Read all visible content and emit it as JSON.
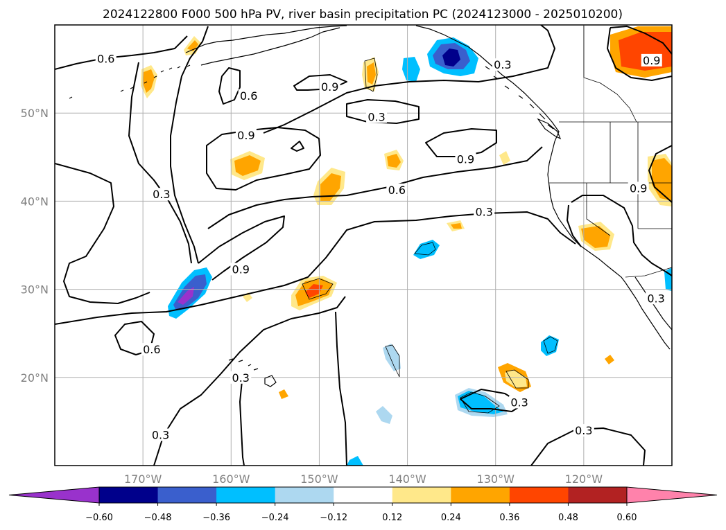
{
  "title": "2024122800 F000 500 hPa PV, river basin precipitation PC (2024123000 - 2025010200)",
  "map": {
    "lon_range": [
      -180,
      -110
    ],
    "lat_range": [
      10,
      60
    ],
    "lon_ticks": [
      {
        "lon": -170,
        "label": "170°W"
      },
      {
        "lon": -160,
        "label": "160°W"
      },
      {
        "lon": -150,
        "label": "150°W"
      },
      {
        "lon": -140,
        "label": "140°W"
      },
      {
        "lon": -130,
        "label": "130°W"
      },
      {
        "lon": -120,
        "label": "120°W"
      }
    ],
    "lat_ticks": [
      {
        "lat": 20,
        "label": "20°N"
      },
      {
        "lat": 30,
        "label": "30°N"
      },
      {
        "lat": 40,
        "label": "40°N"
      },
      {
        "lat": 50,
        "label": "50°N"
      }
    ],
    "gridlines": true
  },
  "colorbar": {
    "labels": [
      "−0.60",
      "−0.48",
      "−0.36",
      "−0.24",
      "−0.12",
      "0.12",
      "0.24",
      "0.36",
      "0.48",
      "0.60"
    ],
    "colors": [
      "#9932cc",
      "#00008b",
      "#3a5fcd",
      "#00bfff",
      "#add8f0",
      "#ffffff",
      "#ffe88a",
      "#ffa500",
      "#ff4500",
      "#b22222",
      "#ff82ab"
    ]
  },
  "contour_labels": [
    {
      "text": "0.6",
      "lon": -174.2,
      "lat": 56.2
    },
    {
      "text": "0.6",
      "lon": -158.0,
      "lat": 52.0
    },
    {
      "text": "0.9",
      "lon": -148.8,
      "lat": 53.0
    },
    {
      "text": "0.3",
      "lon": -143.5,
      "lat": 49.6
    },
    {
      "text": "0.3",
      "lon": -129.2,
      "lat": 55.5
    },
    {
      "text": "0.9",
      "lon": -112.3,
      "lat": 56.0
    },
    {
      "text": "0.9",
      "lon": -158.3,
      "lat": 47.5
    },
    {
      "text": "0.3",
      "lon": -167.9,
      "lat": 40.8
    },
    {
      "text": "0.9",
      "lon": -133.4,
      "lat": 44.8
    },
    {
      "text": "0.6",
      "lon": -141.2,
      "lat": 41.3
    },
    {
      "text": "0.9",
      "lon": -113.8,
      "lat": 41.5
    },
    {
      "text": "0.3",
      "lon": -131.3,
      "lat": 38.8
    },
    {
      "text": "0.9",
      "lon": -158.9,
      "lat": 32.3
    },
    {
      "text": "0.3",
      "lon": -111.8,
      "lat": 29.0
    },
    {
      "text": "0.6",
      "lon": -169.0,
      "lat": 23.2
    },
    {
      "text": "0.3",
      "lon": -158.9,
      "lat": 20.0
    },
    {
      "text": "0.3",
      "lon": -127.3,
      "lat": 17.2
    },
    {
      "text": "0.3",
      "lon": -120.0,
      "lat": 14.0
    },
    {
      "text": "0.3",
      "lon": -168.0,
      "lat": 13.5
    }
  ]
}
